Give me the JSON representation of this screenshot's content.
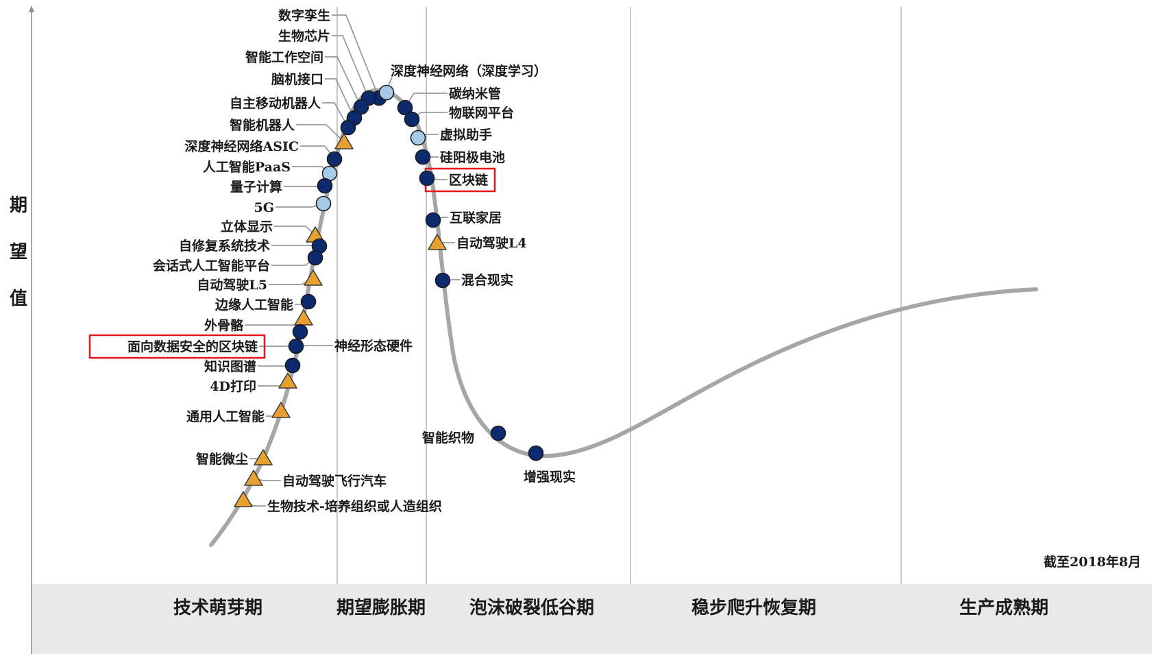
{
  "y_axis_label": "期望值",
  "as_of_note": "截至2018年8月",
  "phases": [
    "技术萌芽期",
    "期望膨胀期",
    "泡沫破裂低谷期",
    "稳步爬升恢复期",
    "生产成熟期"
  ],
  "colors": {
    "curve": "#a6a6a6",
    "dot_dark": "#0e2a6f",
    "dot_light": "#a7cbe6",
    "triangle": "#e8a030",
    "highlight": "#e8141a",
    "band": "#e9e9e9",
    "gridline": "#c8c8c8"
  },
  "markers": {
    "dark_circle": "dot-dark",
    "light_circle": "dot-light",
    "triangle": "triangle-icon"
  },
  "technologies": [
    {
      "name": "数字孪生",
      "marker": "dark_circle"
    },
    {
      "name": "生物芯片",
      "marker": "dark_circle"
    },
    {
      "name": "智能工作空间",
      "marker": "dark_circle"
    },
    {
      "name": "脑机接口",
      "marker": "dark_circle"
    },
    {
      "name": "自主移动机器人",
      "marker": "dark_circle"
    },
    {
      "name": "智能机器人",
      "marker": "triangle"
    },
    {
      "name": "深度神经网络ASIC",
      "marker": "dark_circle"
    },
    {
      "name": "人工智能PaaS",
      "marker": "light_circle"
    },
    {
      "name": "量子计算",
      "marker": "dark_circle"
    },
    {
      "name": "5G",
      "marker": "light_circle"
    },
    {
      "name": "立体显示",
      "marker": "triangle"
    },
    {
      "name": "自修复系统技术",
      "marker": "dark_circle"
    },
    {
      "name": "会话式人工智能平台",
      "marker": "dark_circle"
    },
    {
      "name": "自动驾驶L5",
      "marker": "triangle"
    },
    {
      "name": "边缘人工智能",
      "marker": "dark_circle"
    },
    {
      "name": "外骨骼",
      "marker": "triangle"
    },
    {
      "name": "面向数据安全的区块链",
      "marker": "dark_circle",
      "highlighted": true
    },
    {
      "name": "神经形态硬件",
      "marker": "dark_circle"
    },
    {
      "name": "知识图谱",
      "marker": "dark_circle"
    },
    {
      "name": "4D打印",
      "marker": "triangle"
    },
    {
      "name": "通用人工智能",
      "marker": "triangle"
    },
    {
      "name": "智能微尘",
      "marker": "triangle"
    },
    {
      "name": "自动驾驶飞行汽车",
      "marker": "triangle"
    },
    {
      "name": "生物技术-培养组织或人造组织",
      "marker": "triangle"
    },
    {
      "name": "深度神经网络（深度学习）",
      "marker": "light_circle"
    },
    {
      "name": "碳纳米管",
      "marker": "dark_circle"
    },
    {
      "name": "物联网平台",
      "marker": "dark_circle"
    },
    {
      "name": "虚拟助手",
      "marker": "light_circle"
    },
    {
      "name": "硅阳极电池",
      "marker": "dark_circle"
    },
    {
      "name": "区块链",
      "marker": "dark_circle",
      "highlighted": true
    },
    {
      "name": "互联家居",
      "marker": "dark_circle"
    },
    {
      "name": "自动驾驶L4",
      "marker": "triangle"
    },
    {
      "name": "混合现实",
      "marker": "dark_circle"
    },
    {
      "name": "智能织物",
      "marker": "dark_circle"
    },
    {
      "name": "增强现实",
      "marker": "dark_circle"
    }
  ]
}
